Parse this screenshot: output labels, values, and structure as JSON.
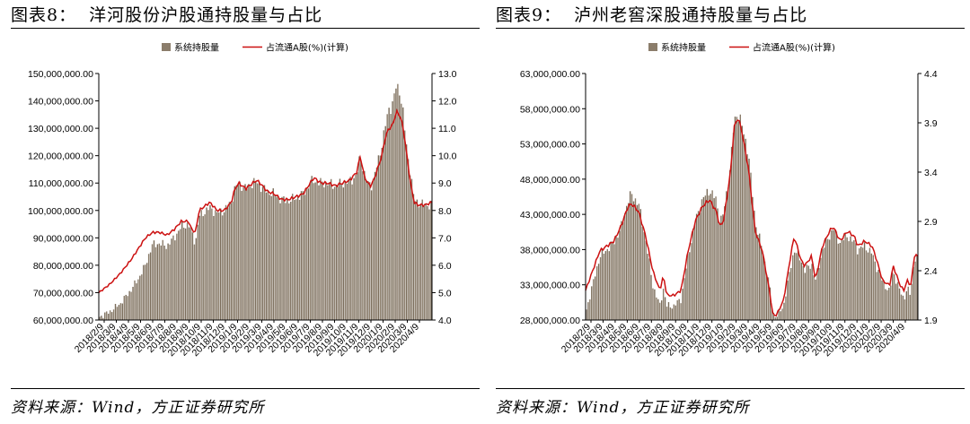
{
  "charts": [
    {
      "figure_title": "图表8：  洋河股份沪股通持股量与占比",
      "source": "资料来源：Wind，方正证券研究所",
      "legend": {
        "bar_label": "系统持股量",
        "line_label": "占流通A股(%)(计算)"
      }
    },
    {
      "figure_title": "图表9：  泸州老窖深股通持股量与占比",
      "source": "资料来源：Wind，方正证券研究所",
      "legend": {
        "bar_label": "系统持股量",
        "line_label": "占流通A股(%)(计算)"
      }
    }
  ],
  "colors": {
    "bars": "#8b7d6b",
    "line": "#cc1111",
    "axis": "#000000"
  },
  "chart_data": [
    {
      "type": "bar+line",
      "title": "洋河股份沪股通持股量与占比",
      "series": [
        {
          "name": "系统持股量",
          "type": "bar",
          "axis": "left",
          "points": [
            [
              0,
              61000000
            ],
            [
              3,
              63000000
            ],
            [
              6,
              66000000
            ],
            [
              9,
              71000000
            ],
            [
              11,
              75000000
            ],
            [
              13,
              80000000
            ],
            [
              14,
              84000000
            ],
            [
              15,
              87500000
            ],
            [
              17,
              88000000
            ],
            [
              19,
              87000000
            ],
            [
              21,
              90000000
            ],
            [
              23,
              94000000
            ],
            [
              25,
              95000000
            ],
            [
              26,
              92000000
            ],
            [
              27,
              88000000
            ],
            [
              28,
              98000000
            ],
            [
              30,
              100000000
            ],
            [
              31,
              101000000
            ],
            [
              33,
              99000000
            ],
            [
              35,
              100000000
            ],
            [
              37,
              103000000
            ],
            [
              38,
              108000000
            ],
            [
              39,
              110000000
            ],
            [
              41,
              108000000
            ],
            [
              43,
              110000000
            ],
            [
              44,
              110500000
            ],
            [
              45,
              109000000
            ],
            [
              47,
              107000000
            ],
            [
              49,
              106000000
            ],
            [
              51,
              104000000
            ],
            [
              53,
              103500000
            ],
            [
              55,
              104500000
            ],
            [
              57,
              106000000
            ],
            [
              59,
              110000000
            ],
            [
              60,
              111000000
            ],
            [
              62,
              110000000
            ],
            [
              64,
              110000000
            ],
            [
              66,
              109000000
            ],
            [
              68,
              110000000
            ],
            [
              70,
              110500000
            ],
            [
              72,
              113000000
            ],
            [
              73,
              120000000
            ],
            [
              74,
              114000000
            ],
            [
              75,
              110000000
            ],
            [
              76,
              109000000
            ],
            [
              77,
              113000000
            ],
            [
              78,
              118000000
            ],
            [
              79,
              124000000
            ],
            [
              80,
              131000000
            ],
            [
              81,
              137000000
            ],
            [
              82,
              139000000
            ],
            [
              83,
              145000000
            ],
            [
              84,
              144000000
            ],
            [
              85,
              135000000
            ],
            [
              86,
              122000000
            ],
            [
              87,
              114000000
            ],
            [
              88,
              104000000
            ],
            [
              89,
              103000000
            ],
            [
              91,
              102000000
            ],
            [
              93,
              102000000
            ]
          ]
        },
        {
          "name": "占流通A股(%)(计算)",
          "type": "line",
          "axis": "right",
          "points": [
            [
              0,
              5.0
            ],
            [
              3,
              5.3
            ],
            [
              6,
              5.7
            ],
            [
              9,
              6.2
            ],
            [
              11,
              6.6
            ],
            [
              13,
              7.0
            ],
            [
              15,
              7.2
            ],
            [
              17,
              7.2
            ],
            [
              19,
              7.1
            ],
            [
              21,
              7.3
            ],
            [
              23,
              7.6
            ],
            [
              25,
              7.6
            ],
            [
              26,
              7.3
            ],
            [
              27,
              7.2
            ],
            [
              28,
              8.0
            ],
            [
              30,
              8.2
            ],
            [
              31,
              8.3
            ],
            [
              33,
              8.0
            ],
            [
              35,
              8.0
            ],
            [
              37,
              8.3
            ],
            [
              38,
              8.8
            ],
            [
              39,
              9.0
            ],
            [
              41,
              8.8
            ],
            [
              43,
              9.0
            ],
            [
              44,
              9.1
            ],
            [
              45,
              9.0
            ],
            [
              47,
              8.7
            ],
            [
              49,
              8.6
            ],
            [
              51,
              8.4
            ],
            [
              53,
              8.4
            ],
            [
              55,
              8.5
            ],
            [
              57,
              8.6
            ],
            [
              59,
              9.0
            ],
            [
              60,
              9.2
            ],
            [
              62,
              9.0
            ],
            [
              64,
              9.0
            ],
            [
              66,
              8.9
            ],
            [
              68,
              9.0
            ],
            [
              70,
              9.1
            ],
            [
              72,
              9.4
            ],
            [
              73,
              10.0
            ],
            [
              74,
              9.3
            ],
            [
              75,
              9.0
            ],
            [
              76,
              8.9
            ],
            [
              77,
              9.2
            ],
            [
              78,
              9.6
            ],
            [
              79,
              10.0
            ],
            [
              80,
              10.7
            ],
            [
              81,
              11.0
            ],
            [
              82,
              11.1
            ],
            [
              83,
              11.6
            ],
            [
              84,
              11.5
            ],
            [
              85,
              11.0
            ],
            [
              86,
              10.0
            ],
            [
              87,
              9.0
            ],
            [
              88,
              8.3
            ],
            [
              89,
              8.2
            ],
            [
              91,
              8.2
            ],
            [
              93,
              8.3
            ]
          ]
        }
      ],
      "x_tick_labels": [
        "2018/2/9",
        "2018/3/9",
        "2018/4/9",
        "2018/5/9",
        "2018/6/9",
        "2018/7/9",
        "2018/8/9",
        "2018/9/9",
        "2018/10/9",
        "2018/11/9",
        "2018/12/9",
        "2019/1/9",
        "2019/2/9",
        "2019/3/9",
        "2019/4/9",
        "2019/5/9",
        "2019/6/9",
        "2019/7/9",
        "2019/8/9",
        "2019/9/9",
        "2019/10/9",
        "2019/11/9",
        "2019/12/9",
        "2020/1/9",
        "2020/2/9",
        "2020/3/9",
        "2020/4/9"
      ],
      "y_left_ticks": [
        "60,000,000.00",
        "70,000,000.00",
        "80,000,000.00",
        "90,000,000.00",
        "100,000,000.00",
        "110,000,000.00",
        "120,000,000.00",
        "130,000,000.00",
        "140,000,000.00",
        "150,000,000.00"
      ],
      "y_right_ticks": [
        "4.0",
        "5.0",
        "6.0",
        "7.0",
        "8.0",
        "9.0",
        "10.0",
        "11.0",
        "12.0",
        "13.0"
      ],
      "y_left_lim": [
        60000000,
        150000000
      ],
      "y_right_lim": [
        4.0,
        13.0
      ],
      "x_lim": [
        0,
        93
      ],
      "legend_position": "top-center",
      "grid": false
    },
    {
      "type": "bar+line",
      "title": "泸州老窖深股通持股量与占比",
      "series": [
        {
          "name": "系统持股量",
          "type": "bar",
          "axis": "left",
          "points": [
            [
              0,
              29000000
            ],
            [
              2,
              33000000
            ],
            [
              4,
              37000000
            ],
            [
              6,
              38000000
            ],
            [
              8,
              39000000
            ],
            [
              10,
              41000000
            ],
            [
              12,
              45000000
            ],
            [
              13,
              45800000
            ],
            [
              15,
              44500000
            ],
            [
              17,
              39500000
            ],
            [
              19,
              33000000
            ],
            [
              21,
              30000000
            ],
            [
              22,
              32500000
            ],
            [
              23,
              30000000
            ],
            [
              25,
              30000000
            ],
            [
              27,
              31000000
            ],
            [
              29,
              37000000
            ],
            [
              31,
              42000000
            ],
            [
              33,
              45000000
            ],
            [
              35,
              46500000
            ],
            [
              37,
              45000000
            ],
            [
              38,
              42000000
            ],
            [
              39,
              43000000
            ],
            [
              41,
              50000000
            ],
            [
              42,
              56000000
            ],
            [
              43,
              57500000
            ],
            [
              44,
              56000000
            ],
            [
              46,
              52000000
            ],
            [
              48,
              42000000
            ],
            [
              50,
              38000000
            ],
            [
              52,
              33000000
            ],
            [
              53,
              29000000
            ],
            [
              54,
              28500000
            ],
            [
              56,
              30000000
            ],
            [
              58,
              35500000
            ],
            [
              59,
              38000000
            ],
            [
              61,
              36500000
            ],
            [
              62,
              35000000
            ],
            [
              64,
              36000000
            ],
            [
              65,
              33500000
            ],
            [
              67,
              38000000
            ],
            [
              69,
              40000000
            ],
            [
              70,
              41000000
            ],
            [
              72,
              39000000
            ],
            [
              74,
              40000000
            ],
            [
              76,
              39000000
            ],
            [
              77,
              38000000
            ],
            [
              79,
              38500000
            ],
            [
              81,
              37500000
            ],
            [
              82,
              36000000
            ],
            [
              84,
              33500000
            ],
            [
              86,
              32000000
            ],
            [
              87,
              35000000
            ],
            [
              89,
              32000000
            ],
            [
              90,
              31000000
            ],
            [
              91,
              32500000
            ],
            [
              92,
              31500000
            ],
            [
              93,
              37000000
            ],
            [
              94,
              36500000
            ]
          ]
        },
        {
          "name": "占流通A股(%)(计算)",
          "type": "line",
          "axis": "right",
          "points": [
            [
              0,
              2.2
            ],
            [
              2,
              2.4
            ],
            [
              4,
              2.6
            ],
            [
              6,
              2.65
            ],
            [
              8,
              2.7
            ],
            [
              10,
              2.85
            ],
            [
              12,
              3.05
            ],
            [
              13,
              3.08
            ],
            [
              15,
              3.0
            ],
            [
              17,
              2.75
            ],
            [
              19,
              2.4
            ],
            [
              21,
              2.2
            ],
            [
              22,
              2.35
            ],
            [
              23,
              2.15
            ],
            [
              25,
              2.15
            ],
            [
              27,
              2.2
            ],
            [
              29,
              2.6
            ],
            [
              31,
              2.9
            ],
            [
              33,
              3.05
            ],
            [
              35,
              3.12
            ],
            [
              37,
              3.0
            ],
            [
              38,
              2.85
            ],
            [
              39,
              2.9
            ],
            [
              41,
              3.4
            ],
            [
              42,
              3.85
            ],
            [
              43,
              3.95
            ],
            [
              44,
              3.85
            ],
            [
              46,
              3.45
            ],
            [
              48,
              2.8
            ],
            [
              50,
              2.6
            ],
            [
              52,
              2.2
            ],
            [
              53,
              1.95
            ],
            [
              54,
              1.95
            ],
            [
              56,
              2.1
            ],
            [
              58,
              2.55
            ],
            [
              59,
              2.75
            ],
            [
              61,
              2.5
            ],
            [
              62,
              2.45
            ],
            [
              64,
              2.55
            ],
            [
              65,
              2.3
            ],
            [
              67,
              2.65
            ],
            [
              69,
              2.8
            ],
            [
              70,
              2.85
            ],
            [
              72,
              2.7
            ],
            [
              74,
              2.8
            ],
            [
              76,
              2.75
            ],
            [
              77,
              2.65
            ],
            [
              79,
              2.7
            ],
            [
              81,
              2.65
            ],
            [
              82,
              2.55
            ],
            [
              84,
              2.3
            ],
            [
              86,
              2.25
            ],
            [
              87,
              2.45
            ],
            [
              89,
              2.25
            ],
            [
              90,
              2.2
            ],
            [
              91,
              2.3
            ],
            [
              92,
              2.25
            ],
            [
              93,
              2.55
            ],
            [
              94,
              2.55
            ]
          ]
        }
      ],
      "x_tick_labels": [
        "2018/2/9",
        "2018/3/9",
        "2018/4/9",
        "2018/5/9",
        "2018/6/9",
        "2018/7/9",
        "2018/8/9",
        "2018/9/9",
        "2018/10/9",
        "2018/11/9",
        "2018/12/9",
        "2019/1/9",
        "2019/2/9",
        "2019/3/9",
        "2019/4/9",
        "2019/5/9",
        "2019/6/9",
        "2019/7/9",
        "2019/8/9",
        "2019/9/9",
        "2019/10/9",
        "2019/11/9",
        "2019/12/9",
        "2020/1/9",
        "2020/2/9",
        "2020/3/9",
        "2020/4/9"
      ],
      "y_left_ticks": [
        "28,000,000.00",
        "33,000,000.00",
        "38,000,000.00",
        "43,000,000.00",
        "48,000,000.00",
        "53,000,000.00",
        "58,000,000.00",
        "63,000,000.00"
      ],
      "y_right_ticks": [
        "1.9",
        "2.4",
        "2.9",
        "3.4",
        "3.9",
        "4.4"
      ],
      "y_left_lim": [
        28000000,
        63000000
      ],
      "y_right_lim": [
        1.9,
        4.4
      ],
      "x_lim": [
        0,
        94
      ],
      "legend_position": "top-center",
      "grid": false
    }
  ]
}
